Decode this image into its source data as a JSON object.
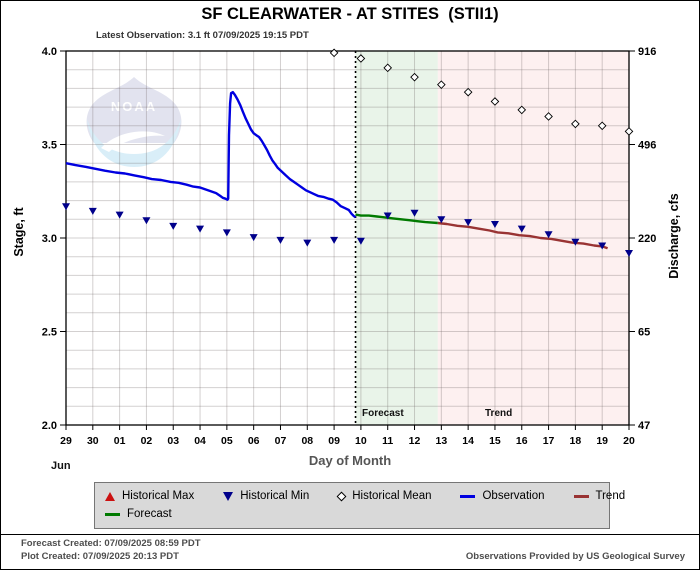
{
  "title": "SF CLEARWATER - AT STITES  (STII1)",
  "subtitle": "Latest Observation: 3.1 ft 07/09/2025 19:15 PDT",
  "watermark_text": "NOAA",
  "axis_titles": {
    "left": "Stage, ft",
    "right": "Discharge, cfs",
    "bottom": "Day of Month",
    "bottom_month": "Jun"
  },
  "region_labels": {
    "forecast": "Forecast",
    "trend": "Trend"
  },
  "legend": {
    "items": [
      {
        "label": "Historical Max",
        "marker": "triangle-up",
        "color": "#cc1111"
      },
      {
        "label": "Historical Min",
        "marker": "triangle-down",
        "color": "#00008b"
      },
      {
        "label": "Historical Mean",
        "marker": "diamond-open",
        "color": "#000000"
      },
      {
        "label": "Observation",
        "marker": "line",
        "color": "#0000e0"
      },
      {
        "label": "Trend",
        "marker": "line",
        "color": "#993333"
      },
      {
        "label": "Forecast",
        "marker": "line",
        "color": "#007a00"
      }
    ]
  },
  "footer": {
    "line1": "Forecast Created: 07/09/2025 08:59 PDT",
    "line2": "Plot Created: 07/09/2025 20:13 PDT",
    "right": "Observations Provided by US Geological Survey"
  },
  "colors": {
    "observation": "#0000e0",
    "forecast": "#007a00",
    "trend": "#993333",
    "historical_min": "#00008b",
    "historical_max": "#cc1111",
    "historical_mean_outline": "#000000",
    "forecast_region_bg": "#e9f4e9",
    "trend_region_bg": "#fdf0f0",
    "grid": "rgba(110,100,100,0.30)",
    "now_line": "#000000"
  },
  "chart_data": {
    "type": "line",
    "title": "SF CLEARWATER - AT STITES  (STII1)",
    "x_axis": {
      "label": "Day of Month",
      "month_label": "Jun",
      "tick_labels": [
        "29",
        "30",
        "01",
        "02",
        "03",
        "04",
        "05",
        "06",
        "07",
        "08",
        "09",
        "10",
        "11",
        "12",
        "13",
        "14",
        "15",
        "16",
        "17",
        "18",
        "19",
        "20"
      ],
      "range_day_index": [
        0,
        21
      ]
    },
    "y_axis_left": {
      "label": "Stage, ft",
      "tick_values": [
        4.0,
        3.5,
        3.0,
        2.5,
        2.0
      ],
      "range": [
        2.0,
        4.0
      ],
      "minor_step": 0.1
    },
    "y_axis_right": {
      "label": "Discharge, cfs",
      "tick_labels": [
        "916",
        "496",
        "220",
        "65",
        "47"
      ]
    },
    "now_marker_day_index": 10.8,
    "forecast_region_day_index": [
      10.8,
      13.87
    ],
    "trend_region_day_index": [
      13.87,
      21
    ],
    "series": [
      {
        "name": "Observation",
        "type": "line",
        "color": "#0000e0",
        "points": [
          [
            0,
            3.4
          ],
          [
            0.35,
            3.39
          ],
          [
            0.75,
            3.38
          ],
          [
            1.1,
            3.37
          ],
          [
            1.45,
            3.36
          ],
          [
            1.85,
            3.35
          ],
          [
            2.2,
            3.345
          ],
          [
            2.55,
            3.335
          ],
          [
            2.9,
            3.325
          ],
          [
            3.2,
            3.315
          ],
          [
            3.55,
            3.31
          ],
          [
            3.9,
            3.3
          ],
          [
            4.2,
            3.295
          ],
          [
            4.5,
            3.285
          ],
          [
            4.75,
            3.275
          ],
          [
            5.0,
            3.27
          ],
          [
            5.2,
            3.26
          ],
          [
            5.4,
            3.25
          ],
          [
            5.6,
            3.24
          ],
          [
            5.75,
            3.225
          ],
          [
            5.85,
            3.215
          ],
          [
            5.95,
            3.21
          ],
          [
            6.02,
            3.205
          ],
          [
            6.05,
            3.21
          ],
          [
            6.08,
            3.55
          ],
          [
            6.12,
            3.72
          ],
          [
            6.16,
            3.775
          ],
          [
            6.22,
            3.78
          ],
          [
            6.3,
            3.765
          ],
          [
            6.4,
            3.74
          ],
          [
            6.5,
            3.71
          ],
          [
            6.6,
            3.675
          ],
          [
            6.7,
            3.64
          ],
          [
            6.8,
            3.61
          ],
          [
            6.9,
            3.58
          ],
          [
            7.0,
            3.56
          ],
          [
            7.1,
            3.55
          ],
          [
            7.2,
            3.54
          ],
          [
            7.3,
            3.52
          ],
          [
            7.4,
            3.495
          ],
          [
            7.5,
            3.47
          ],
          [
            7.6,
            3.44
          ],
          [
            7.7,
            3.415
          ],
          [
            7.8,
            3.395
          ],
          [
            7.9,
            3.375
          ],
          [
            8.05,
            3.355
          ],
          [
            8.2,
            3.335
          ],
          [
            8.35,
            3.315
          ],
          [
            8.5,
            3.3
          ],
          [
            8.65,
            3.285
          ],
          [
            8.8,
            3.27
          ],
          [
            8.95,
            3.255
          ],
          [
            9.1,
            3.245
          ],
          [
            9.25,
            3.235
          ],
          [
            9.4,
            3.225
          ],
          [
            9.6,
            3.22
          ],
          [
            9.8,
            3.21
          ],
          [
            9.95,
            3.205
          ],
          [
            10.1,
            3.19
          ],
          [
            10.25,
            3.17
          ],
          [
            10.4,
            3.16
          ],
          [
            10.55,
            3.15
          ],
          [
            10.65,
            3.13
          ],
          [
            10.72,
            3.12
          ],
          [
            10.8,
            3.11
          ]
        ]
      },
      {
        "name": "Forecast",
        "type": "line",
        "color": "#007a00",
        "points": [
          [
            10.8,
            3.125
          ],
          [
            11.0,
            3.12
          ],
          [
            11.3,
            3.12
          ],
          [
            11.6,
            3.115
          ],
          [
            11.9,
            3.11
          ],
          [
            12.2,
            3.105
          ],
          [
            12.5,
            3.1
          ],
          [
            12.8,
            3.095
          ],
          [
            13.1,
            3.09
          ],
          [
            13.4,
            3.085
          ],
          [
            13.87,
            3.08
          ]
        ]
      },
      {
        "name": "Trend",
        "type": "line",
        "color": "#993333",
        "points": [
          [
            13.87,
            3.08
          ],
          [
            14.2,
            3.075
          ],
          [
            14.6,
            3.065
          ],
          [
            15.0,
            3.06
          ],
          [
            15.4,
            3.05
          ],
          [
            15.8,
            3.04
          ],
          [
            16.1,
            3.03
          ],
          [
            16.5,
            3.025
          ],
          [
            16.9,
            3.015
          ],
          [
            17.3,
            3.01
          ],
          [
            17.7,
            3.0
          ],
          [
            18.1,
            2.995
          ],
          [
            18.5,
            2.985
          ],
          [
            18.9,
            2.975
          ],
          [
            19.3,
            2.97
          ],
          [
            19.7,
            2.96
          ],
          [
            20.0,
            2.955
          ],
          [
            20.2,
            2.945
          ]
        ]
      },
      {
        "name": "Historical Min",
        "type": "scatter",
        "marker": "triangle-down",
        "color": "#00008b",
        "points": [
          [
            0,
            3.17
          ],
          [
            1,
            3.145
          ],
          [
            2,
            3.125
          ],
          [
            3,
            3.095
          ],
          [
            4,
            3.065
          ],
          [
            5,
            3.05
          ],
          [
            6,
            3.03
          ],
          [
            7,
            3.005
          ],
          [
            8,
            2.99
          ],
          [
            9,
            2.975
          ],
          [
            10,
            2.99
          ],
          [
            11,
            2.985
          ],
          [
            12,
            3.12
          ],
          [
            13,
            3.135
          ],
          [
            14,
            3.1
          ],
          [
            15,
            3.085
          ],
          [
            16,
            3.075
          ],
          [
            17,
            3.05
          ],
          [
            18,
            3.02
          ],
          [
            19,
            2.98
          ],
          [
            20,
            2.96
          ],
          [
            21,
            2.92
          ]
        ]
      },
      {
        "name": "Historical Mean",
        "type": "scatter",
        "marker": "diamond-open",
        "color": "#000000",
        "points": [
          [
            10,
            3.99
          ],
          [
            11,
            3.96
          ],
          [
            12,
            3.91
          ],
          [
            13,
            3.86
          ],
          [
            14,
            3.82
          ],
          [
            15,
            3.78
          ],
          [
            16,
            3.73
          ],
          [
            17,
            3.685
          ],
          [
            18,
            3.65
          ],
          [
            19,
            3.61
          ],
          [
            20,
            3.6
          ],
          [
            21,
            3.57
          ]
        ]
      },
      {
        "name": "Historical Max",
        "type": "scatter",
        "marker": "triangle-up",
        "color": "#cc1111",
        "points": [],
        "note": "off scale above 4.0 ft in displayed window"
      }
    ]
  }
}
